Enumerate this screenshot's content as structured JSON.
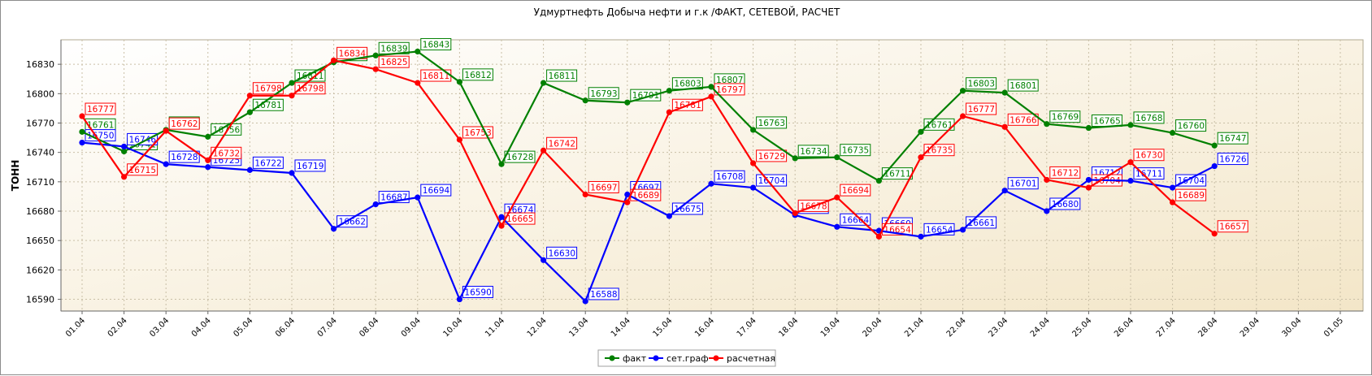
{
  "chart_data": {
    "type": "line",
    "title": "Удмуртнефть Добыча нефти и г.к /ФАКТ, СЕТЕВОЙ, РАСЧЕТ",
    "ylabel": "ТОНН",
    "xlabel": "",
    "ylim": [
      16578,
      16855
    ],
    "yticks": [
      16590,
      16620,
      16650,
      16680,
      16710,
      16740,
      16770,
      16800,
      16830
    ],
    "categories": [
      "01.04",
      "02.04",
      "03.04",
      "04.04",
      "05.04",
      "06.04",
      "07.04",
      "08.04",
      "09.04",
      "10.04",
      "11.04",
      "12.04",
      "13.04",
      "14.04",
      "15.04",
      "16.04",
      "17.04",
      "18.04",
      "19.04",
      "20.04",
      "21.04",
      "22.04",
      "23.04",
      "24.04",
      "25.04",
      "26.04",
      "27.04",
      "28.04",
      "29.04",
      "30.04",
      "01.05"
    ],
    "grid": true,
    "legend": "bottom-center",
    "series": [
      {
        "name": "факт",
        "color": "#008000",
        "values": [
          16761,
          16741,
          16763,
          16756,
          16781,
          16811,
          16832,
          16839,
          16843,
          16812,
          16728,
          16811,
          16793,
          16791,
          16803,
          16807,
          16763,
          16734,
          16735,
          16711,
          16761,
          16803,
          16801,
          16769,
          16765,
          16768,
          16760,
          16747,
          null,
          null,
          null
        ]
      },
      {
        "name": "сет.граф",
        "color": "#0000ff",
        "values": [
          16750,
          16746,
          16728,
          16725,
          16722,
          16719,
          16662,
          16687,
          16694,
          16590,
          16674,
          16630,
          16588,
          16697,
          16675,
          16708,
          16704,
          16676,
          16664,
          16660,
          16654,
          16661,
          16701,
          16680,
          16712,
          16711,
          16704,
          16726,
          null,
          null,
          null
        ]
      },
      {
        "name": "расчетная",
        "color": "#ff0000",
        "values": [
          16777,
          16715,
          16762,
          16732,
          16798,
          16798,
          16834,
          16825,
          16811,
          16753,
          16665,
          16742,
          16697,
          16689,
          16781,
          16797,
          16729,
          16678,
          16694,
          16654,
          16735,
          16777,
          16766,
          16712,
          16704,
          16730,
          16689,
          16657,
          null,
          null,
          null
        ]
      }
    ]
  }
}
